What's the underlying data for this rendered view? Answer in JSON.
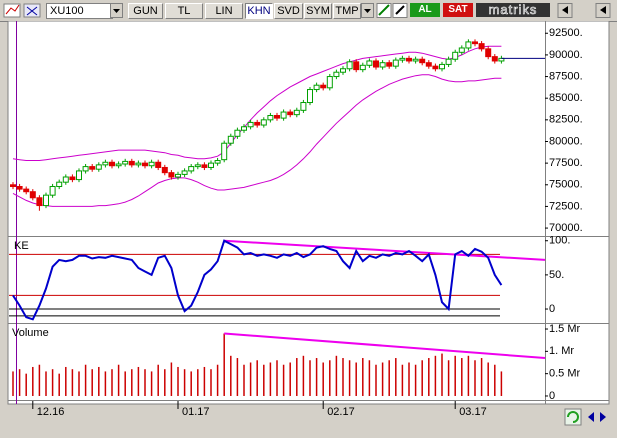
{
  "toolbar": {
    "symbol": "XU100",
    "buttons": [
      "GUN",
      "TL",
      "LIN",
      "KHN",
      "SVD",
      "SYM",
      "TMP"
    ],
    "active": "KHN",
    "buy": "AL",
    "sell": "SAT",
    "brand": "matriks"
  },
  "chart_data": [
    {
      "type": "candlestick",
      "open": [
        75000,
        74800,
        74500,
        74200,
        73500,
        72600,
        73800,
        74800,
        75300,
        75900,
        75600,
        76600,
        77100,
        76800,
        77300,
        77600,
        77200,
        77400,
        77700,
        77300,
        77500,
        77200,
        77600,
        77000,
        76400,
        75900,
        76200,
        76600,
        77100,
        77300,
        77000,
        77500,
        77900,
        79800,
        80600,
        81300,
        81700,
        82200,
        81900,
        82500,
        83000,
        82700,
        83400,
        83100,
        83600,
        84500,
        86000,
        86500,
        86200,
        87500,
        88000,
        88400,
        89200,
        88300,
        88800,
        89300,
        88600,
        89100,
        88700,
        89400,
        89600,
        89300,
        89500,
        89100,
        88700,
        88400,
        88900,
        89500,
        90300,
        90800,
        91500,
        91300,
        90700,
        89800,
        89300
      ],
      "high": [
        75300,
        75100,
        74800,
        74500,
        73800,
        74100,
        75100,
        75600,
        76200,
        76200,
        76900,
        77400,
        77400,
        77600,
        77900,
        77900,
        77700,
        78000,
        78000,
        77800,
        77800,
        77900,
        77900,
        77300,
        76700,
        76500,
        76900,
        77400,
        77600,
        77600,
        77800,
        78100,
        80100,
        80900,
        81600,
        82000,
        82500,
        82500,
        82800,
        83300,
        83300,
        83700,
        83700,
        83900,
        84800,
        86300,
        86800,
        86800,
        87800,
        88300,
        88700,
        89500,
        89500,
        89100,
        89600,
        89600,
        89400,
        89400,
        89700,
        89900,
        89900,
        89800,
        89800,
        89400,
        89000,
        89200,
        89800,
        90600,
        91100,
        91800,
        91800,
        91600,
        91000,
        90100,
        89900
      ],
      "low": [
        74500,
        74200,
        73900,
        73200,
        72000,
        72300,
        73500,
        74500,
        75000,
        75300,
        75300,
        76300,
        76500,
        76500,
        77000,
        76900,
        76900,
        77100,
        77000,
        77000,
        76900,
        76900,
        76700,
        76100,
        75600,
        75600,
        75900,
        76300,
        76800,
        76700,
        76700,
        77200,
        77600,
        79500,
        80300,
        81000,
        81400,
        81600,
        81600,
        82200,
        82400,
        82400,
        82800,
        82800,
        83300,
        84200,
        85700,
        85900,
        85900,
        87200,
        87700,
        88100,
        88000,
        88000,
        88500,
        88300,
        88300,
        88400,
        88400,
        89100,
        89000,
        89000,
        88800,
        88400,
        88100,
        88100,
        88600,
        89200,
        90000,
        90500,
        91000,
        90400,
        89500,
        89000,
        89000
      ],
      "close": [
        74800,
        74500,
        74200,
        73500,
        72600,
        73800,
        74800,
        75300,
        75900,
        75600,
        76600,
        77100,
        76800,
        77300,
        77600,
        77200,
        77400,
        77700,
        77300,
        77500,
        77200,
        77600,
        77000,
        76400,
        75900,
        76200,
        76600,
        77100,
        77300,
        77000,
        77500,
        77800,
        79800,
        80600,
        81300,
        81700,
        82200,
        81900,
        82500,
        83000,
        82700,
        83400,
        83100,
        83600,
        84500,
        86000,
        86500,
        86200,
        87500,
        88000,
        88400,
        89200,
        88300,
        88800,
        89300,
        88600,
        89100,
        88700,
        89400,
        89600,
        89300,
        89500,
        89100,
        88700,
        88400,
        88900,
        89500,
        90300,
        90800,
        91500,
        91300,
        90700,
        89800,
        89300,
        89600
      ],
      "up_color": "#00a000",
      "down_color": "#e00000",
      "last_color": "#000080",
      "bands": [
        {
          "color": "#cc00cc",
          "values": [
            78000,
            77900,
            77800,
            77800,
            77800,
            77900,
            78000,
            78100,
            78200,
            78300,
            78400,
            78500,
            78600,
            78700,
            78800,
            78900,
            79000,
            79000,
            79000,
            79000,
            79000,
            78900,
            78800,
            78700,
            78500,
            78400,
            78200,
            78100,
            78000,
            78000,
            78100,
            78300,
            78800,
            79800,
            80800,
            81600,
            82500,
            83300,
            84000,
            84700,
            85300,
            85800,
            86300,
            86700,
            87100,
            87500,
            87800,
            88100,
            88400,
            88700,
            89000,
            89200,
            89400,
            89600,
            89700,
            89800,
            89900,
            90000,
            90100,
            90200,
            90300,
            90300,
            90200,
            90000,
            89800,
            89600,
            89500,
            89700,
            90000,
            90400,
            90700,
            90900,
            91000,
            91000,
            91000
          ]
        },
        {
          "color": "#cc00cc",
          "values": [
            74000,
            73600,
            73200,
            72900,
            72700,
            72600,
            72500,
            72500,
            72500,
            72500,
            72500,
            72500,
            72500,
            72600,
            72600,
            72700,
            72800,
            73000,
            73300,
            73700,
            74200,
            74700,
            75200,
            75500,
            75700,
            75800,
            75800,
            75600,
            75300,
            74900,
            74600,
            74400,
            74400,
            74500,
            74600,
            74700,
            74900,
            75100,
            75300,
            75500,
            75800,
            76200,
            76700,
            77300,
            78000,
            78800,
            79700,
            80500,
            81300,
            82100,
            82800,
            83500,
            84200,
            84800,
            85300,
            85800,
            86200,
            86600,
            86900,
            87200,
            87400,
            87600,
            87700,
            87700,
            87500,
            87200,
            87000,
            86900,
            86900,
            87000,
            87000,
            87100,
            87200,
            87300,
            87300
          ]
        }
      ],
      "ylim": [
        69200,
        93800
      ],
      "yticks": [
        {
          "value": 92500,
          "label": "92500."
        },
        {
          "value": 90000,
          "label": "90000."
        },
        {
          "value": 87500,
          "label": "87500."
        },
        {
          "value": 85000,
          "label": "85000."
        },
        {
          "value": 82500,
          "label": "82500."
        },
        {
          "value": 80000,
          "label": "80000."
        },
        {
          "value": 77500,
          "label": "77500."
        },
        {
          "value": 75000,
          "label": "75000."
        },
        {
          "value": 72500,
          "label": "72500."
        },
        {
          "value": 70000,
          "label": "70000."
        }
      ]
    },
    {
      "type": "line",
      "title": "KE",
      "color": "#0000cc",
      "values": [
        20,
        5,
        -12,
        -15,
        5,
        30,
        62,
        72,
        70,
        72,
        78,
        78,
        74,
        76,
        75,
        78,
        76,
        74,
        72,
        60,
        55,
        50,
        75,
        78,
        60,
        20,
        -3,
        5,
        25,
        50,
        58,
        70,
        100,
        95,
        90,
        80,
        82,
        78,
        80,
        78,
        75,
        80,
        78,
        82,
        76,
        80,
        90,
        92,
        88,
        85,
        70,
        60,
        85,
        70,
        78,
        75,
        80,
        78,
        82,
        80,
        85,
        78,
        70,
        80,
        50,
        10,
        0,
        80,
        85,
        78,
        88,
        84,
        75,
        50,
        35
      ],
      "hlines": [
        {
          "value": 80,
          "color": "#cc0000"
        },
        {
          "value": 20,
          "color": "#cc0000"
        },
        {
          "value": 0,
          "color": "#000000"
        },
        {
          "value": -10,
          "color": "#000000"
        }
      ],
      "trendline": {
        "values": [
          100,
          72
        ],
        "color": "#ee00ee"
      },
      "ylim": [
        -19,
        104
      ],
      "yticks": [
        {
          "value": 100,
          "label": "100."
        },
        {
          "value": 50,
          "label": "50."
        },
        0
      ]
    },
    {
      "type": "bar",
      "title": "Volume",
      "color": "#cc0000",
      "categories": [
        null,
        null,
        null,
        "12.16",
        null,
        null,
        null,
        null,
        null,
        null,
        null,
        null,
        null,
        null,
        null,
        null,
        null,
        null,
        null,
        null,
        null,
        null,
        null,
        null,
        null,
        "01.17",
        null,
        null,
        null,
        null,
        null,
        null,
        null,
        null,
        null,
        null,
        null,
        null,
        null,
        null,
        null,
        null,
        null,
        null,
        null,
        null,
        null,
        "02.17",
        null,
        null,
        null,
        null,
        null,
        null,
        null,
        null,
        null,
        null,
        null,
        null,
        null,
        null,
        null,
        null,
        null,
        null,
        null,
        "03.17",
        null,
        null,
        null,
        null,
        null,
        null,
        null
      ],
      "values": [
        0.55,
        0.6,
        0.5,
        0.65,
        0.7,
        0.55,
        0.6,
        0.5,
        0.65,
        0.6,
        0.55,
        0.7,
        0.6,
        0.65,
        0.55,
        0.6,
        0.7,
        0.55,
        0.6,
        0.65,
        0.6,
        0.55,
        0.7,
        0.6,
        0.75,
        0.65,
        0.6,
        0.55,
        0.6,
        0.65,
        0.6,
        0.7,
        1.4,
        0.9,
        0.85,
        0.7,
        0.75,
        0.8,
        0.7,
        0.75,
        0.8,
        0.7,
        0.75,
        0.85,
        0.9,
        0.8,
        0.85,
        0.75,
        0.8,
        0.9,
        0.85,
        0.8,
        0.75,
        0.85,
        0.8,
        0.7,
        0.75,
        0.8,
        0.85,
        0.7,
        0.75,
        0.7,
        0.8,
        0.85,
        0.9,
        0.95,
        0.8,
        0.9,
        0.85,
        0.9,
        0.8,
        0.85,
        0.75,
        0.7,
        0.55
      ],
      "trendline": {
        "values": [
          1.4,
          0.85
        ],
        "color": "#ee00ee"
      },
      "ylim": [
        -0.09,
        1.59
      ],
      "yticks": [
        {
          "value": 1.5,
          "label": "1.5 Mr"
        },
        {
          "value": 1,
          "label": "1. Mr"
        },
        {
          "value": 0.5,
          "label": "0.5 Mr"
        },
        0
      ]
    }
  ]
}
